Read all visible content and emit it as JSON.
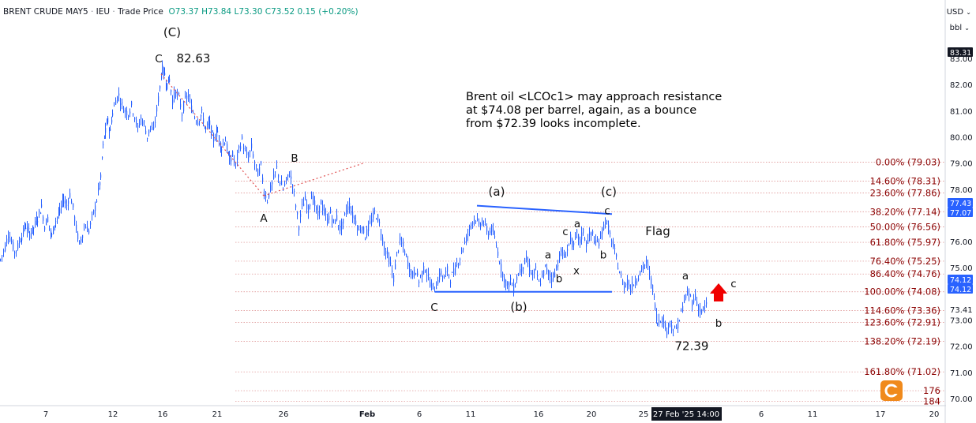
{
  "header": {
    "symbol": "BRENT CRUDE MAY5",
    "exchange": "IEU",
    "price_type": "Trade Price",
    "open": "O73.37",
    "high": "H73.84",
    "low": "L73.30",
    "close": "C73.52",
    "change": "0.15 (+0.20%)"
  },
  "toolbar": {
    "currency": "USD",
    "unit": "bbl"
  },
  "annotation_text": [
    "Brent oil <LCOc1> may approach resistance",
    "at $74.08 per barrel, again, as a bounce",
    "from $72.39 looks incomplete."
  ],
  "watermark": "汇金网",
  "chart_data": {
    "type": "candlestick",
    "ylim": [
      69.8,
      84.3
    ],
    "x_ticks": [
      "7",
      "12",
      "16",
      "21",
      "26",
      "Feb",
      "6",
      "11",
      "16",
      "20",
      "25",
      "6",
      "11",
      "17",
      "20"
    ],
    "x_cursor_label": "27 Feb '25  14:00",
    "y_ticks": [
      "83.00",
      "82.00",
      "81.00",
      "80.00",
      "79.00",
      "78.00",
      "76.00",
      "75.00",
      "73.41",
      "73.00",
      "72.00",
      "71.00",
      "70.00"
    ],
    "y_highlight_labels": [
      {
        "value": 83.31,
        "label": "83.31",
        "style": "dark"
      },
      {
        "value": 77.43,
        "label": "77.43",
        "style": "blue"
      },
      {
        "value": 77.07,
        "label": "77.07",
        "style": "blue"
      },
      {
        "value": 74.12,
        "label": "74.12",
        "style": "blue"
      },
      {
        "value": 74.12,
        "label": "74.12",
        "style": "blue"
      }
    ],
    "fib_levels": [
      {
        "label": "0.00% (79.03)",
        "value": 79.03
      },
      {
        "label": "14.60% (78.31)",
        "value": 78.31
      },
      {
        "label": "23.60% (77.86)",
        "value": 77.86
      },
      {
        "label": "38.20% (77.14)",
        "value": 77.14
      },
      {
        "label": "50.00% (76.56)",
        "value": 76.56
      },
      {
        "label": "61.80% (75.97)",
        "value": 75.97
      },
      {
        "label": "76.40% (75.25)",
        "value": 75.25
      },
      {
        "label": "86.40% (74.76)",
        "value": 74.76
      },
      {
        "label": "100.00% (74.08)",
        "value": 74.08
      },
      {
        "label": "114.60% (73.36)",
        "value": 73.36
      },
      {
        "label": "123.60% (72.91)",
        "value": 72.91
      },
      {
        "label": "138.20% (72.19)",
        "value": 72.19
      },
      {
        "label": "161.80% (71.02)",
        "value": 71.02
      },
      {
        "label": "176",
        "value": 70.3
      },
      {
        "label": "184",
        "value": 69.9
      }
    ],
    "price_path": [
      [
        0,
        75.3
      ],
      [
        6,
        75.8
      ],
      [
        10,
        76.3
      ],
      [
        14,
        76.0
      ],
      [
        18,
        75.6
      ],
      [
        22,
        75.8
      ],
      [
        27,
        76.2
      ],
      [
        32,
        76.6
      ],
      [
        37,
        76.3
      ],
      [
        42,
        76.5
      ],
      [
        47,
        76.9
      ],
      [
        52,
        77.3
      ],
      [
        56,
        76.6
      ],
      [
        60,
        76.9
      ],
      [
        65,
        76.2
      ],
      [
        70,
        76.8
      ],
      [
        75,
        77.1
      ],
      [
        80,
        77.6
      ],
      [
        84,
        77.4
      ],
      [
        88,
        77.8
      ],
      [
        92,
        77.3
      ],
      [
        96,
        76.5
      ],
      [
        100,
        75.9
      ],
      [
        104,
        76.3
      ],
      [
        108,
        76.6
      ],
      [
        112,
        76.4
      ],
      [
        116,
        76.9
      ],
      [
        120,
        77.3
      ],
      [
        124,
        77.9
      ],
      [
        127,
        78.4
      ],
      [
        130,
        79.6
      ],
      [
        133,
        80.2
      ],
      [
        136,
        80.6
      ],
      [
        139,
        80.2
      ],
      [
        142,
        80.9
      ],
      [
        146,
        81.4
      ],
      [
        150,
        81.6
      ],
      [
        154,
        81.2
      ],
      [
        158,
        81.0
      ],
      [
        162,
        80.9
      ],
      [
        166,
        81.2
      ],
      [
        170,
        80.8
      ],
      [
        174,
        80.3
      ],
      [
        178,
        80.7
      ],
      [
        182,
        80.5
      ],
      [
        186,
        80.0
      ],
      [
        190,
        80.4
      ],
      [
        194,
        80.2
      ],
      [
        198,
        81.0
      ],
      [
        202,
        81.9
      ],
      [
        205,
        82.6
      ],
      [
        208,
        82.4
      ],
      [
        211,
        82.0
      ],
      [
        214,
        82.2
      ],
      [
        218,
        81.4
      ],
      [
        222,
        81.7
      ],
      [
        226,
        81.5
      ],
      [
        230,
        80.9
      ],
      [
        234,
        81.4
      ],
      [
        238,
        81.6
      ],
      [
        242,
        81.1
      ],
      [
        246,
        80.8
      ],
      [
        250,
        80.6
      ],
      [
        255,
        80.9
      ],
      [
        260,
        80.3
      ],
      [
        265,
        80.5
      ],
      [
        270,
        79.9
      ],
      [
        275,
        80.2
      ],
      [
        280,
        79.6
      ],
      [
        285,
        79.9
      ],
      [
        290,
        79.1
      ],
      [
        294,
        79.3
      ],
      [
        298,
        78.9
      ],
      [
        302,
        79.5
      ],
      [
        306,
        79.9
      ],
      [
        310,
        79.4
      ],
      [
        314,
        79.2
      ],
      [
        318,
        79.6
      ],
      [
        322,
        79.0
      ],
      [
        326,
        78.6
      ],
      [
        330,
        78.9
      ],
      [
        334,
        77.9
      ],
      [
        338,
        77.6
      ],
      [
        342,
        78.0
      ],
      [
        346,
        78.4
      ],
      [
        350,
        78.8
      ],
      [
        354,
        78.3
      ],
      [
        358,
        78.0
      ],
      [
        362,
        78.3
      ],
      [
        366,
        78.6
      ],
      [
        370,
        78.2
      ],
      [
        374,
        77.4
      ],
      [
        378,
        76.6
      ],
      [
        382,
        77.3
      ],
      [
        386,
        77.6
      ],
      [
        390,
        77.2
      ],
      [
        394,
        77.8
      ],
      [
        398,
        77.4
      ],
      [
        402,
        77.0
      ],
      [
        406,
        77.5
      ],
      [
        410,
        77.1
      ],
      [
        414,
        76.8
      ],
      [
        418,
        77.1
      ],
      [
        422,
        76.7
      ],
      [
        426,
        76.9
      ],
      [
        430,
        76.5
      ],
      [
        434,
        76.7
      ],
      [
        438,
        77.2
      ],
      [
        442,
        77.4
      ],
      [
        446,
        77.0
      ],
      [
        450,
        76.8
      ],
      [
        454,
        76.4
      ],
      [
        458,
        76.6
      ],
      [
        462,
        76.2
      ],
      [
        466,
        76.5
      ],
      [
        470,
        76.8
      ],
      [
        474,
        77.1
      ],
      [
        478,
        76.9
      ],
      [
        482,
        76.4
      ],
      [
        486,
        75.8
      ],
      [
        490,
        75.5
      ],
      [
        494,
        75.1
      ],
      [
        498,
        74.6
      ],
      [
        502,
        75.5
      ],
      [
        506,
        76.0
      ],
      [
        510,
        75.8
      ],
      [
        514,
        75.4
      ],
      [
        518,
        75.0
      ],
      [
        522,
        74.7
      ],
      [
        526,
        74.9
      ],
      [
        530,
        74.5
      ],
      [
        534,
        74.8
      ],
      [
        538,
        75.0
      ],
      [
        542,
        74.6
      ],
      [
        546,
        74.3
      ],
      [
        550,
        74.2
      ],
      [
        554,
        74.5
      ],
      [
        558,
        74.8
      ],
      [
        562,
        74.6
      ],
      [
        566,
        74.9
      ],
      [
        570,
        74.6
      ],
      [
        574,
        74.8
      ],
      [
        578,
        75.1
      ],
      [
        582,
        75.4
      ],
      [
        586,
        75.8
      ],
      [
        590,
        76.1
      ],
      [
        594,
        76.5
      ],
      [
        598,
        76.8
      ],
      [
        602,
        76.9
      ],
      [
        606,
        76.6
      ],
      [
        610,
        76.8
      ],
      [
        614,
        76.6
      ],
      [
        618,
        76.3
      ],
      [
        622,
        76.5
      ],
      [
        626,
        76.1
      ],
      [
        630,
        75.6
      ],
      [
        634,
        75.0
      ],
      [
        638,
        74.6
      ],
      [
        642,
        74.3
      ],
      [
        646,
        74.5
      ],
      [
        650,
        74.2
      ],
      [
        654,
        74.6
      ],
      [
        658,
        74.9
      ],
      [
        662,
        75.1
      ],
      [
        666,
        75.3
      ],
      [
        670,
        75.0
      ],
      [
        674,
        74.7
      ],
      [
        678,
        74.9
      ],
      [
        682,
        74.4
      ],
      [
        686,
        74.6
      ],
      [
        690,
        75.0
      ],
      [
        694,
        74.8
      ],
      [
        698,
        74.6
      ],
      [
        702,
        74.8
      ],
      [
        706,
        75.2
      ],
      [
        710,
        75.6
      ],
      [
        714,
        75.4
      ],
      [
        718,
        75.7
      ],
      [
        722,
        76.1
      ],
      [
        726,
        75.8
      ],
      [
        730,
        76.3
      ],
      [
        734,
        76.0
      ],
      [
        738,
        76.4
      ],
      [
        742,
        75.9
      ],
      [
        746,
        76.2
      ],
      [
        750,
        76.3
      ],
      [
        754,
        75.9
      ],
      [
        758,
        76.0
      ],
      [
        762,
        76.4
      ],
      [
        766,
        76.8
      ],
      [
        770,
        76.5
      ],
      [
        774,
        76.0
      ],
      [
        778,
        75.6
      ],
      [
        782,
        75.1
      ],
      [
        786,
        74.6
      ],
      [
        790,
        74.3
      ],
      [
        794,
        74.5
      ],
      [
        798,
        74.2
      ],
      [
        802,
        74.4
      ],
      [
        806,
        74.6
      ],
      [
        810,
        74.8
      ],
      [
        814,
        75.0
      ],
      [
        818,
        75.2
      ],
      [
        822,
        74.8
      ],
      [
        826,
        74.2
      ],
      [
        829,
        73.6
      ],
      [
        832,
        72.9
      ],
      [
        836,
        73.1
      ],
      [
        840,
        72.9
      ],
      [
        844,
        72.6
      ],
      [
        848,
        73.0
      ],
      [
        852,
        72.5
      ],
      [
        856,
        72.7
      ],
      [
        860,
        73.0
      ],
      [
        864,
        73.5
      ],
      [
        868,
        73.9
      ],
      [
        872,
        74.0
      ],
      [
        876,
        73.7
      ],
      [
        880,
        73.9
      ],
      [
        884,
        73.5
      ],
      [
        888,
        73.3
      ],
      [
        892,
        73.5
      ],
      [
        896,
        73.6
      ]
    ],
    "wave_labels": [
      {
        "text": "(C)",
        "x": 218,
        "y": 84.0
      },
      {
        "text": "C",
        "x": 201,
        "y": 83.0
      },
      {
        "text": "82.63",
        "x": 245,
        "y": 83.0
      },
      {
        "text": "B",
        "x": 373,
        "y": 79.2
      },
      {
        "text": "A",
        "x": 334,
        "y": 76.9
      },
      {
        "text": "(a)",
        "x": 629,
        "y": 77.9
      },
      {
        "text": "(c)",
        "x": 771,
        "y": 77.9
      },
      {
        "text": "c",
        "x": 769,
        "y": 77.2
      },
      {
        "text": "a",
        "x": 731,
        "y": 76.7
      },
      {
        "text": "c",
        "x": 716,
        "y": 76.4
      },
      {
        "text": "a",
        "x": 694,
        "y": 75.5
      },
      {
        "text": "b",
        "x": 764,
        "y": 75.5
      },
      {
        "text": "x",
        "x": 730,
        "y": 74.9
      },
      {
        "text": "b",
        "x": 708,
        "y": 74.6
      },
      {
        "text": "Flag",
        "x": 833,
        "y": 76.4
      },
      {
        "text": "C",
        "x": 550,
        "y": 73.5
      },
      {
        "text": "(b)",
        "x": 657,
        "y": 73.5
      },
      {
        "text": "a",
        "x": 868,
        "y": 74.7
      },
      {
        "text": "c",
        "x": 929,
        "y": 74.4
      },
      {
        "text": "b",
        "x": 910,
        "y": 72.9
      },
      {
        "text": "72.39",
        "x": 876,
        "y": 72.0
      }
    ],
    "trendlines": [
      {
        "from": [
          604,
          77.37
        ],
        "to": [
          775,
          77.05
        ],
        "style": "solid-blue"
      },
      {
        "from": [
          551,
          74.08
        ],
        "to": [
          775,
          74.08
        ],
        "style": "solid-blue"
      },
      {
        "from": [
          204,
          82.4
        ],
        "to": [
          334,
          77.75
        ],
        "style": "dotted-red"
      },
      {
        "from": [
          334,
          77.75
        ],
        "to": [
          461,
          79.0
        ],
        "style": "dotted-red"
      }
    ]
  }
}
